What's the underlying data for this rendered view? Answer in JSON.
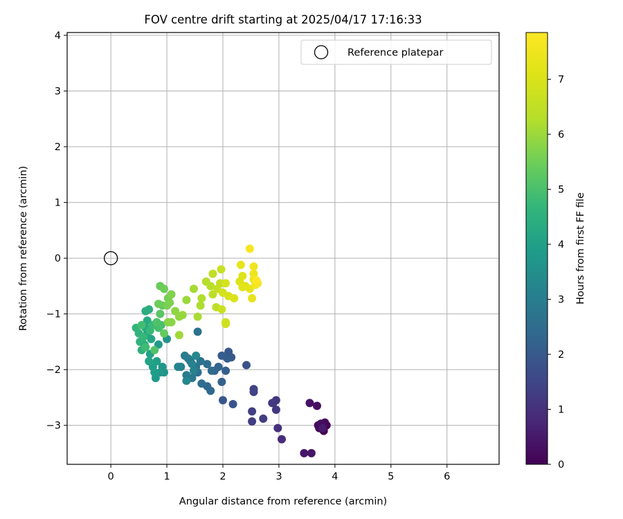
{
  "chart_data": {
    "type": "scatter",
    "title": "FOV centre drift starting at 2025/04/17 17:16:33",
    "xlabel": "Angular distance from reference (arcmin)",
    "ylabel": "Rotation from reference (arcmin)",
    "xlim": [
      -0.78,
      6.93
    ],
    "ylim": [
      -3.7,
      4.05
    ],
    "xticks": [
      0,
      1,
      2,
      3,
      4,
      5,
      6
    ],
    "yticks": [
      -3,
      -2,
      -1,
      0,
      1,
      2,
      3,
      4
    ],
    "xtick_labels": [
      "0",
      "1",
      "2",
      "3",
      "4",
      "5",
      "6"
    ],
    "ytick_labels": [
      "−3",
      "−2",
      "−1",
      "0",
      "1",
      "2",
      "3",
      "4"
    ],
    "grid": true,
    "colormap": "viridis",
    "legend": {
      "position": "top-right",
      "entries": [
        {
          "label": "Reference platepar",
          "marker": "open-circle"
        }
      ]
    },
    "reference_point": {
      "x": 0,
      "y": 0
    },
    "colorbar": {
      "label": "Hours from first FF file",
      "range": [
        0,
        7.85
      ],
      "ticks": [
        0,
        1,
        2,
        3,
        4,
        5,
        6,
        7
      ],
      "tick_labels": [
        "0",
        "1",
        "2",
        "3",
        "4",
        "5",
        "6",
        "7"
      ]
    },
    "points": [
      {
        "x": 3.8,
        "y": -3.1,
        "h": 0.0
      },
      {
        "x": 3.85,
        "y": -3.0,
        "h": 0.05
      },
      {
        "x": 3.72,
        "y": -3.05,
        "h": 0.1
      },
      {
        "x": 3.82,
        "y": -2.95,
        "h": 0.15
      },
      {
        "x": 3.7,
        "y": -3.0,
        "h": 0.2
      },
      {
        "x": 3.75,
        "y": -2.97,
        "h": 0.25
      },
      {
        "x": 3.68,
        "y": -2.65,
        "h": 0.3
      },
      {
        "x": 3.55,
        "y": -2.6,
        "h": 0.35
      },
      {
        "x": 3.58,
        "y": -3.5,
        "h": 0.4
      },
      {
        "x": 3.45,
        "y": -3.5,
        "h": 0.45
      },
      {
        "x": 3.78,
        "y": -3.05,
        "h": 0.5
      },
      {
        "x": 3.05,
        "y": -3.25,
        "h": 0.9
      },
      {
        "x": 2.98,
        "y": -3.05,
        "h": 1.0
      },
      {
        "x": 2.9,
        "y": -2.6,
        "h": 1.05
      },
      {
        "x": 2.95,
        "y": -2.55,
        "h": 1.1
      },
      {
        "x": 2.95,
        "y": -2.72,
        "h": 1.15
      },
      {
        "x": 2.88,
        "y": -2.6,
        "h": 1.2
      },
      {
        "x": 2.72,
        "y": -2.88,
        "h": 1.25
      },
      {
        "x": 2.52,
        "y": -2.93,
        "h": 1.3
      },
      {
        "x": 2.52,
        "y": -2.75,
        "h": 1.35
      },
      {
        "x": 2.55,
        "y": -2.4,
        "h": 1.4
      },
      {
        "x": 2.55,
        "y": -2.35,
        "h": 1.45
      },
      {
        "x": 2.42,
        "y": -1.92,
        "h": 1.8
      },
      {
        "x": 2.18,
        "y": -2.62,
        "h": 1.85
      },
      {
        "x": 2.0,
        "y": -2.55,
        "h": 1.9
      },
      {
        "x": 2.1,
        "y": -1.68,
        "h": 1.95
      },
      {
        "x": 2.15,
        "y": -1.78,
        "h": 2.0
      },
      {
        "x": 2.08,
        "y": -1.8,
        "h": 2.05
      },
      {
        "x": 1.98,
        "y": -1.75,
        "h": 2.1
      },
      {
        "x": 2.05,
        "y": -2.02,
        "h": 2.15
      },
      {
        "x": 1.98,
        "y": -2.22,
        "h": 2.2
      },
      {
        "x": 1.92,
        "y": -1.95,
        "h": 2.25
      },
      {
        "x": 1.85,
        "y": -2.02,
        "h": 2.3
      },
      {
        "x": 1.78,
        "y": -2.38,
        "h": 2.35
      },
      {
        "x": 1.72,
        "y": -2.3,
        "h": 2.4
      },
      {
        "x": 1.8,
        "y": -2.02,
        "h": 2.45
      },
      {
        "x": 1.72,
        "y": -1.9,
        "h": 2.5
      },
      {
        "x": 1.62,
        "y": -2.25,
        "h": 2.55
      },
      {
        "x": 1.55,
        "y": -2.05,
        "h": 2.6
      },
      {
        "x": 1.55,
        "y": -1.32,
        "h": 2.65
      },
      {
        "x": 1.6,
        "y": -1.85,
        "h": 2.7
      },
      {
        "x": 1.52,
        "y": -1.95,
        "h": 2.75
      },
      {
        "x": 1.45,
        "y": -2.15,
        "h": 2.8
      },
      {
        "x": 1.42,
        "y": -1.85,
        "h": 2.85
      },
      {
        "x": 1.35,
        "y": -2.1,
        "h": 2.9
      },
      {
        "x": 1.38,
        "y": -1.8,
        "h": 2.95
      },
      {
        "x": 1.32,
        "y": -1.75,
        "h": 3.0
      },
      {
        "x": 1.25,
        "y": -1.95,
        "h": 3.05
      },
      {
        "x": 1.45,
        "y": -1.9,
        "h": 3.1
      },
      {
        "x": 1.48,
        "y": -2.02,
        "h": 3.15
      },
      {
        "x": 1.2,
        "y": -1.95,
        "h": 3.2
      },
      {
        "x": 1.35,
        "y": -2.2,
        "h": 3.25
      },
      {
        "x": 1.52,
        "y": -1.75,
        "h": 3.3
      },
      {
        "x": 1.0,
        "y": -1.45,
        "h": 3.6
      },
      {
        "x": 0.95,
        "y": -2.05,
        "h": 3.65
      },
      {
        "x": 0.92,
        "y": -1.95,
        "h": 3.7
      },
      {
        "x": 0.88,
        "y": -2.05,
        "h": 3.75
      },
      {
        "x": 0.85,
        "y": -1.55,
        "h": 3.8
      },
      {
        "x": 0.8,
        "y": -2.15,
        "h": 3.85
      },
      {
        "x": 0.78,
        "y": -2.05,
        "h": 3.9
      },
      {
        "x": 0.75,
        "y": -1.95,
        "h": 3.95
      },
      {
        "x": 0.82,
        "y": -1.85,
        "h": 4.0
      },
      {
        "x": 0.7,
        "y": -1.72,
        "h": 4.05
      },
      {
        "x": 0.68,
        "y": -1.85,
        "h": 4.1
      },
      {
        "x": 0.72,
        "y": -1.45,
        "h": 4.15
      },
      {
        "x": 0.65,
        "y": -1.35,
        "h": 4.2
      },
      {
        "x": 0.62,
        "y": -1.25,
        "h": 4.25
      },
      {
        "x": 0.65,
        "y": -1.12,
        "h": 4.3
      },
      {
        "x": 0.62,
        "y": -0.95,
        "h": 4.35
      },
      {
        "x": 0.68,
        "y": -0.92,
        "h": 4.4
      },
      {
        "x": 0.6,
        "y": -1.55,
        "h": 4.45
      },
      {
        "x": 0.55,
        "y": -1.65,
        "h": 4.5
      },
      {
        "x": 0.52,
        "y": -1.5,
        "h": 4.55
      },
      {
        "x": 0.5,
        "y": -1.35,
        "h": 4.6
      },
      {
        "x": 0.45,
        "y": -1.25,
        "h": 4.65
      },
      {
        "x": 0.58,
        "y": -1.42,
        "h": 4.7
      },
      {
        "x": 0.7,
        "y": -1.3,
        "h": 4.75
      },
      {
        "x": 0.75,
        "y": -1.2,
        "h": 4.8
      },
      {
        "x": 0.62,
        "y": -1.6,
        "h": 4.85
      },
      {
        "x": 0.55,
        "y": -1.2,
        "h": 4.9
      },
      {
        "x": 0.85,
        "y": -1.25,
        "h": 4.95
      },
      {
        "x": 0.9,
        "y": -1.2,
        "h": 5.0
      },
      {
        "x": 0.82,
        "y": -1.15,
        "h": 5.05
      },
      {
        "x": 0.78,
        "y": -1.65,
        "h": 5.1
      },
      {
        "x": 0.88,
        "y": -1.0,
        "h": 5.2
      },
      {
        "x": 0.92,
        "y": -0.85,
        "h": 5.3
      },
      {
        "x": 0.95,
        "y": -1.35,
        "h": 5.35
      },
      {
        "x": 0.88,
        "y": -0.5,
        "h": 5.4
      },
      {
        "x": 0.85,
        "y": -0.82,
        "h": 5.45
      },
      {
        "x": 0.95,
        "y": -0.55,
        "h": 5.5
      },
      {
        "x": 1.02,
        "y": -0.72,
        "h": 5.55
      },
      {
        "x": 1.0,
        "y": -0.85,
        "h": 5.6
      },
      {
        "x": 1.05,
        "y": -0.8,
        "h": 5.65
      },
      {
        "x": 1.08,
        "y": -0.65,
        "h": 5.7
      },
      {
        "x": 1.02,
        "y": -1.15,
        "h": 5.75
      },
      {
        "x": 1.08,
        "y": -1.15,
        "h": 5.8
      },
      {
        "x": 1.15,
        "y": -0.95,
        "h": 5.85
      },
      {
        "x": 1.22,
        "y": -1.05,
        "h": 5.9
      },
      {
        "x": 1.28,
        "y": -1.02,
        "h": 5.95
      },
      {
        "x": 1.35,
        "y": -0.75,
        "h": 6.0
      },
      {
        "x": 1.22,
        "y": -1.38,
        "h": 6.05
      },
      {
        "x": 1.48,
        "y": -0.55,
        "h": 6.1
      },
      {
        "x": 1.55,
        "y": -1.05,
        "h": 6.15
      },
      {
        "x": 1.6,
        "y": -0.85,
        "h": 6.2
      },
      {
        "x": 1.62,
        "y": -0.72,
        "h": 6.25
      },
      {
        "x": 1.7,
        "y": -0.42,
        "h": 6.3
      },
      {
        "x": 1.78,
        "y": -0.5,
        "h": 6.35
      },
      {
        "x": 1.82,
        "y": -0.65,
        "h": 6.4
      },
      {
        "x": 1.88,
        "y": -0.88,
        "h": 6.45
      },
      {
        "x": 1.82,
        "y": -0.28,
        "h": 6.5
      },
      {
        "x": 1.9,
        "y": -0.55,
        "h": 6.55
      },
      {
        "x": 1.95,
        "y": -0.45,
        "h": 6.6
      },
      {
        "x": 1.97,
        "y": -0.2,
        "h": 6.65
      },
      {
        "x": 1.98,
        "y": -0.92,
        "h": 6.7
      },
      {
        "x": 2.05,
        "y": -1.15,
        "h": 6.75
      },
      {
        "x": 2.05,
        "y": -1.18,
        "h": 6.8
      },
      {
        "x": 2.0,
        "y": -0.62,
        "h": 6.85
      },
      {
        "x": 2.05,
        "y": -0.45,
        "h": 6.9
      },
      {
        "x": 2.1,
        "y": -0.68,
        "h": 6.95
      },
      {
        "x": 2.2,
        "y": -0.72,
        "h": 7.0
      },
      {
        "x": 2.3,
        "y": -0.42,
        "h": 7.05
      },
      {
        "x": 2.35,
        "y": -0.32,
        "h": 7.1
      },
      {
        "x": 2.4,
        "y": -0.5,
        "h": 7.15
      },
      {
        "x": 2.35,
        "y": -0.52,
        "h": 7.2
      },
      {
        "x": 2.48,
        "y": -0.55,
        "h": 7.25
      },
      {
        "x": 2.32,
        "y": -0.12,
        "h": 7.3
      },
      {
        "x": 2.52,
        "y": -0.72,
        "h": 7.35
      },
      {
        "x": 2.55,
        "y": -0.38,
        "h": 7.4
      },
      {
        "x": 2.55,
        "y": -0.28,
        "h": 7.45
      },
      {
        "x": 2.55,
        "y": -0.15,
        "h": 7.5
      },
      {
        "x": 2.58,
        "y": -0.48,
        "h": 7.55
      },
      {
        "x": 2.62,
        "y": -0.45,
        "h": 7.6
      },
      {
        "x": 2.48,
        "y": 0.17,
        "h": 7.7
      },
      {
        "x": 2.6,
        "y": -0.4,
        "h": 7.8
      }
    ]
  }
}
